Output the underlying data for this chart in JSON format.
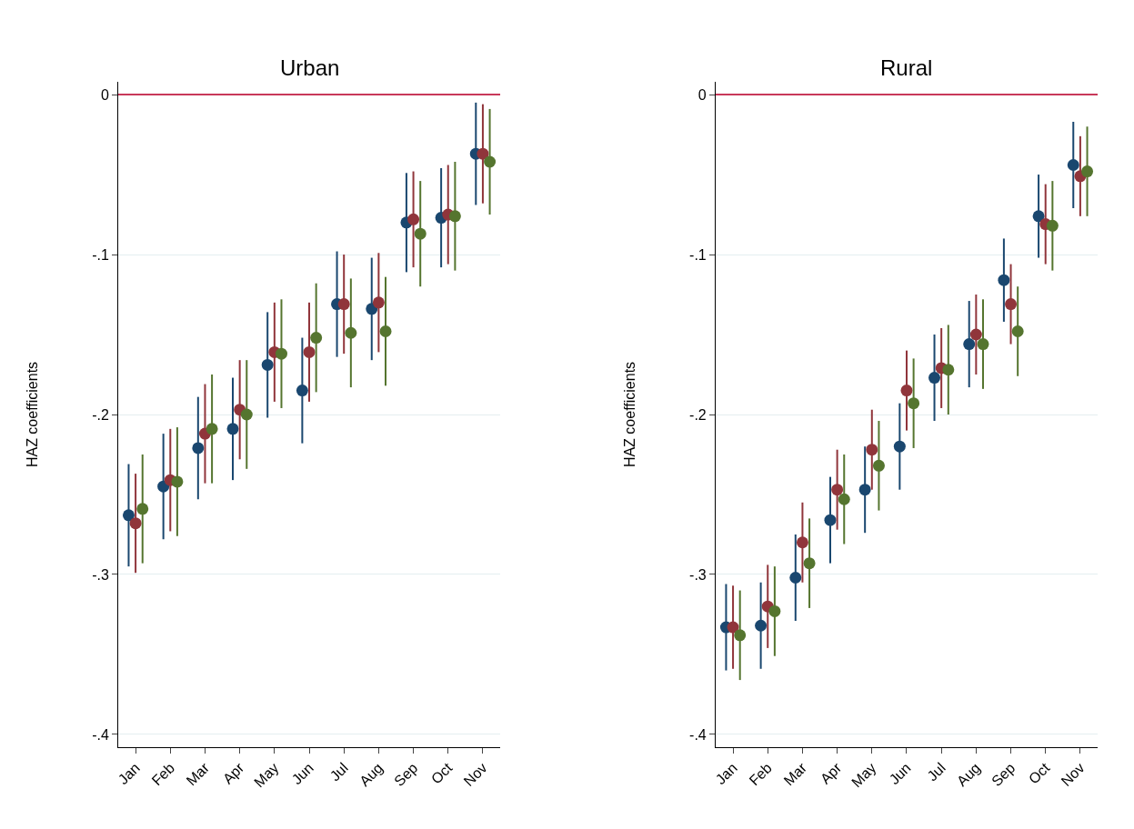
{
  "chart_data": [
    {
      "type": "scatter",
      "title": "Urban",
      "ylabel": "HAZ coefficients",
      "categories": [
        "Jan",
        "Feb",
        "Mar",
        "Apr",
        "May",
        "Jun",
        "Jul",
        "Aug",
        "Sep",
        "Oct",
        "Nov"
      ],
      "series": [
        {
          "color": "#1a476f",
          "values": [
            -0.263,
            -0.245,
            -0.221,
            -0.209,
            -0.169,
            -0.185,
            -0.131,
            -0.134,
            -0.08,
            -0.077,
            -0.037
          ],
          "errors": [
            0.032,
            0.033,
            0.032,
            0.032,
            0.033,
            0.033,
            0.033,
            0.032,
            0.031,
            0.031,
            0.032
          ]
        },
        {
          "color": "#90353b",
          "values": [
            -0.268,
            -0.241,
            -0.212,
            -0.197,
            -0.161,
            -0.161,
            -0.131,
            -0.13,
            -0.078,
            -0.075,
            -0.037
          ],
          "errors": [
            0.031,
            0.032,
            0.031,
            0.031,
            0.031,
            0.031,
            0.031,
            0.031,
            0.03,
            0.031,
            0.031
          ]
        },
        {
          "color": "#55752f",
          "values": [
            -0.259,
            -0.242,
            -0.209,
            -0.2,
            -0.162,
            -0.152,
            -0.149,
            -0.148,
            -0.087,
            -0.076,
            -0.042
          ],
          "errors": [
            0.034,
            0.034,
            0.034,
            0.034,
            0.034,
            0.034,
            0.034,
            0.034,
            0.033,
            0.034,
            0.033
          ]
        }
      ],
      "ylim": [
        -0.408,
        0.008
      ],
      "yticks": [
        0,
        {
          "value": -0.1,
          "label": "-.1"
        },
        {
          "value": -0.2,
          "label": "-.2"
        },
        {
          "value": -0.3,
          "label": "-.3"
        },
        {
          "value": -0.4,
          "label": "-.4"
        }
      ],
      "ref_lines": [
        {
          "axis": "y",
          "value": 0,
          "color": "#c8385a"
        }
      ],
      "grid": "y",
      "marker": "circle"
    },
    {
      "type": "scatter",
      "title": "Rural",
      "ylabel": "HAZ coefficients",
      "categories": [
        "Jan",
        "Feb",
        "Mar",
        "Apr",
        "May",
        "Jun",
        "Jul",
        "Aug",
        "Sep",
        "Oct",
        "Nov"
      ],
      "series": [
        {
          "color": "#1a476f",
          "values": [
            -0.333,
            -0.332,
            -0.302,
            -0.266,
            -0.247,
            -0.22,
            -0.177,
            -0.156,
            -0.116,
            -0.076,
            -0.044
          ],
          "errors": [
            0.027,
            0.027,
            0.027,
            0.027,
            0.027,
            0.027,
            0.027,
            0.027,
            0.026,
            0.026,
            0.027
          ]
        },
        {
          "color": "#90353b",
          "values": [
            -0.333,
            -0.32,
            -0.28,
            -0.247,
            -0.222,
            -0.185,
            -0.171,
            -0.15,
            -0.131,
            -0.081,
            -0.051
          ],
          "errors": [
            0.026,
            0.026,
            0.025,
            0.025,
            0.025,
            0.025,
            0.025,
            0.025,
            0.025,
            0.025,
            0.025
          ]
        },
        {
          "color": "#55752f",
          "values": [
            -0.338,
            -0.323,
            -0.293,
            -0.253,
            -0.232,
            -0.193,
            -0.172,
            -0.156,
            -0.148,
            -0.082,
            -0.048
          ],
          "errors": [
            0.028,
            0.028,
            0.028,
            0.028,
            0.028,
            0.028,
            0.028,
            0.028,
            0.028,
            0.028,
            0.028
          ]
        }
      ],
      "ylim": [
        -0.408,
        0.008
      ],
      "yticks": [
        0,
        {
          "value": -0.1,
          "label": "-.1"
        },
        {
          "value": -0.2,
          "label": "-.2"
        },
        {
          "value": -0.3,
          "label": "-.3"
        },
        {
          "value": -0.4,
          "label": "-.4"
        }
      ],
      "ref_lines": [
        {
          "axis": "y",
          "value": 0,
          "color": "#c8385a"
        }
      ],
      "grid": "y",
      "marker": "circle"
    }
  ]
}
